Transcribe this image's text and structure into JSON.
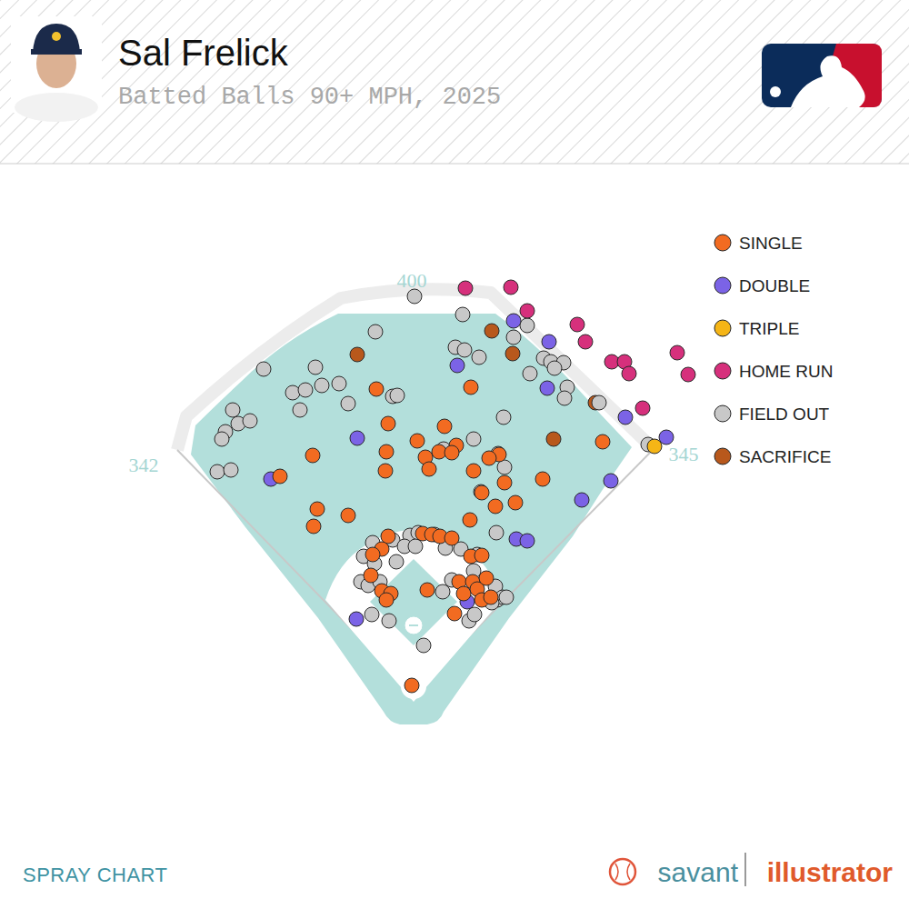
{
  "chart_data": {
    "type": "scatter",
    "title": "Sal Frelick",
    "subtitle": "Batted Balls 90+ MPH, 2025",
    "annotations": {
      "left_field": 342,
      "center_field": 400,
      "right_field": 345
    },
    "footer": "SPRAY CHART",
    "source": {
      "brand": "savant",
      "product": "illustrator"
    },
    "xlim": [
      0,
      1000
    ],
    "ylim": [
      80,
      820
    ],
    "tick_labels": false,
    "grid": false,
    "legend": "top-right",
    "marker": "circle",
    "series": [
      {
        "name": "SINGLE",
        "color": "#f26b21",
        "x": [
          414,
          518,
          427,
          489,
          459,
          344,
          425,
          502,
          468,
          483,
          497,
          472,
          424,
          549,
          521,
          538,
          555,
          308,
          663,
          597,
          530,
          545,
          567,
          349,
          383,
          345,
          517,
          427,
          420,
          465,
          475,
          484,
          497,
          518,
          530,
          410,
          408,
          420,
          430,
          425,
          470,
          505,
          510,
          520,
          525,
          535,
          530,
          540,
          500,
          453
        ],
        "y": [
          572,
          574,
          534,
          531,
          515,
          499,
          503,
          510,
          497,
          503,
          502,
          484,
          482,
          500,
          482,
          496,
          469,
          476,
          514,
          473,
          458,
          443,
          447,
          440,
          433,
          421,
          428,
          410,
          396,
          413,
          412,
          410,
          408,
          388,
          389,
          390,
          367,
          350,
          347,
          340,
          351,
          360,
          347,
          360,
          352,
          364,
          340,
          343,
          325,
          246
        ]
      },
      {
        "name": "DOUBLE",
        "color": "#7b63e6",
        "x": [
          565,
          604,
          503,
          602,
          393,
          298,
          688,
          733,
          672,
          640,
          568,
          580,
          514,
          392
        ],
        "y": [
          647,
          624,
          598,
          573,
          518,
          473,
          541,
          519,
          471,
          450,
          407,
          405,
          338,
          319
        ]
      },
      {
        "name": "TRIPLE",
        "color": "#f5b516",
        "x": [
          720
        ],
        "y": [
          509
        ]
      },
      {
        "name": "HOME RUN",
        "color": "#d6307c",
        "x": [
          512,
          562,
          580,
          635,
          644,
          673,
          687,
          692,
          745,
          757,
          707
        ],
        "y": [
          683,
          684,
          658,
          643,
          624,
          602,
          602,
          589,
          612,
          588,
          551
        ]
      },
      {
        "name": "FIELD OUT",
        "color": "#c8c8c8",
        "x": [
          456,
          509,
          413,
          565,
          580,
          501,
          511,
          527,
          583,
          598,
          606,
          620,
          610,
          624,
          621,
          659,
          290,
          347,
          322,
          336,
          354,
          373,
          383,
          432,
          437,
          330,
          256,
          262,
          275,
          248,
          244,
          239,
          254,
          554,
          488,
          521,
          548,
          529,
          555,
          546,
          713,
          410,
          432,
          451,
          460,
          478,
          445,
          457,
          490,
          507,
          525,
          400,
          412,
          436,
          397,
          405,
          418,
          487,
          497,
          521,
          545,
          547,
          553,
          541,
          557,
          409,
          428,
          516,
          522,
          466
        ],
        "y": [
          674,
          654,
          635,
          629,
          642,
          618,
          615,
          607,
          589,
          606,
          602,
          601,
          595,
          574,
          562,
          557,
          594,
          596,
          568,
          571,
          576,
          578,
          556,
          564,
          565,
          549,
          549,
          534,
          537,
          525,
          517,
          481,
          483,
          541,
          506,
          517,
          501,
          459,
          486,
          414,
          511,
          403,
          406,
          411,
          414,
          412,
          399,
          399,
          397,
          396,
          390,
          388,
          380,
          382,
          360,
          356,
          360,
          349,
          362,
          372,
          355,
          340,
          343,
          337,
          343,
          324,
          317,
          317,
          324,
          290
        ]
      },
      {
        "name": "SACRIFICE",
        "color": "#b8581c",
        "x": [
          541,
          564,
          393,
          655,
          609
        ],
        "y": [
          636,
          611,
          610,
          557,
          517
        ]
      }
    ]
  }
}
